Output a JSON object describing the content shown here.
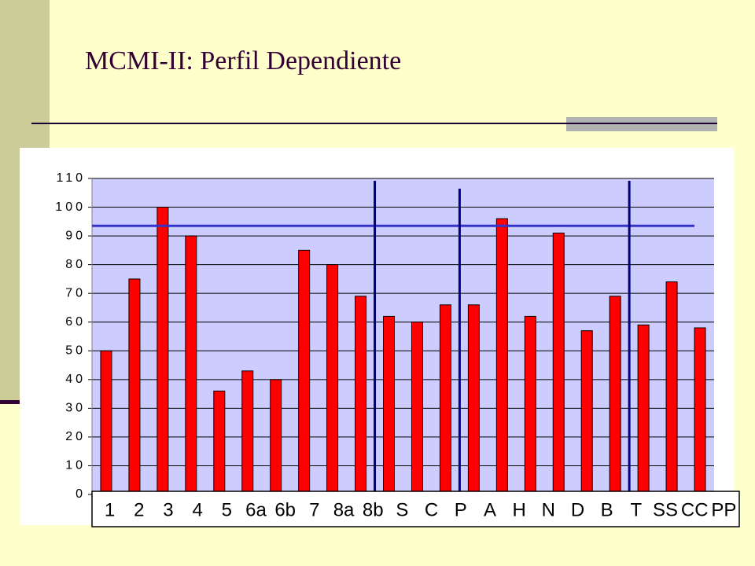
{
  "chart_data": {
    "type": "bar",
    "title": "MCMI-II: Perfil Dependiente",
    "categories": [
      "1",
      "2",
      "3",
      "4",
      "5",
      "6a",
      "6b",
      "7",
      "8a",
      "8b",
      "S",
      "C",
      "P",
      "A",
      "H",
      "N",
      "D",
      "B",
      "T",
      "SS",
      "CC",
      "PP"
    ],
    "values": [
      50,
      75,
      100,
      90,
      36,
      43,
      40,
      85,
      80,
      69,
      62,
      60,
      66,
      66,
      96,
      62,
      91,
      57,
      69,
      59,
      74,
      58
    ],
    "color": "#ff0000",
    "ylim": [
      0,
      110
    ],
    "yticks": [
      0,
      10,
      20,
      30,
      40,
      50,
      60,
      70,
      80,
      90,
      100,
      110
    ],
    "grid": true,
    "reference_line": 93.5
  }
}
